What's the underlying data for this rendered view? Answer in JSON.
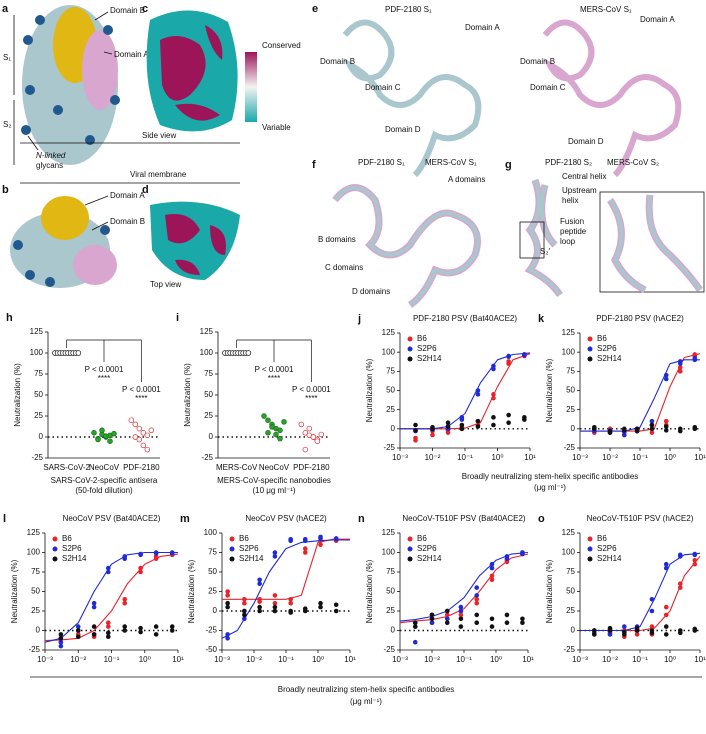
{
  "panels": [
    {
      "label": "a",
      "texts": [
        "S₁",
        "S₂",
        "Domain B",
        "Domain A",
        "N-linked",
        "glycans"
      ]
    },
    {
      "label": "c",
      "texts": [
        "Conserved",
        "Variable",
        "Side view",
        "Viral membrane"
      ]
    },
    {
      "label": "b",
      "texts": [
        "Domain A",
        "Domain B",
        "Top view"
      ]
    },
    {
      "label": "d"
    },
    {
      "label": "e",
      "texts": [
        "PDF-2180 S₁",
        "Domain A",
        "Domain B",
        "Domain C",
        "Domain D",
        "MERS-CoV S₁",
        "Domain A",
        "Domain B",
        "Domain C",
        "Domain D"
      ]
    },
    {
      "label": "f",
      "texts": [
        "PDF-2180 S₁",
        "MERS-CoV S₁",
        "A domains",
        "B domains",
        "C domains",
        "D domains"
      ]
    },
    {
      "label": "g",
      "texts": [
        "PDF-2180 S₂",
        "MERS-CoV S₂",
        "Central helix",
        "Upstream",
        "helix",
        "Fusion",
        "peptide",
        "loop",
        "S₂′"
      ]
    }
  ],
  "shared_x_labels": [
    [
      "Broadly neutralizing stem-helix specific antibodies",
      "(μg ml⁻¹)"
    ],
    [
      "Broadly neutralizing stem-helix specific antibodies",
      "(μg ml⁻¹)"
    ]
  ],
  "chart_data": [
    {
      "type": "strip",
      "panel": "h",
      "y_label": "Neutralization (%)",
      "x_label": [
        "SARS-CoV-2-specific antisera",
        "(50-fold dilution)"
      ],
      "categories": [
        "SARS-CoV-2",
        "NeoCoV",
        "PDF-2180"
      ],
      "colors": [
        "#111111",
        "#2ca02c",
        "#e0262b"
      ],
      "markers": [
        "open",
        "filled",
        "open"
      ],
      "values": [
        [
          100,
          100,
          100,
          100,
          100,
          100,
          100,
          100,
          100,
          100
        ],
        [
          5,
          -2,
          3,
          0,
          2,
          -3,
          8,
          1,
          -5,
          4
        ],
        [
          20,
          15,
          10,
          5,
          2,
          0,
          -3,
          -10,
          -15,
          8
        ]
      ],
      "annotations": [
        "P < 0.0001",
        "****",
        "P < 0.0001",
        "****"
      ],
      "ylim": [
        -25,
        125
      ],
      "yticks": [
        -25,
        0,
        25,
        50,
        75,
        100,
        125
      ]
    },
    {
      "type": "strip",
      "panel": "i",
      "y_label": "Neutralization (%)",
      "x_label": [
        "MERS-CoV-specific nanobodies",
        "(10 μg ml⁻¹)"
      ],
      "categories": [
        "MERS-CoV",
        "NeoCoV",
        "PDF-2180"
      ],
      "colors": [
        "#111111",
        "#2ca02c",
        "#e0262b"
      ],
      "markers": [
        "open",
        "filled",
        "open"
      ],
      "values": [
        [
          100,
          100,
          100,
          100,
          100,
          100,
          100,
          100,
          100,
          100
        ],
        [
          25,
          20,
          15,
          10,
          8,
          5,
          12,
          3,
          -2,
          18
        ],
        [
          15,
          5,
          2,
          0,
          -3,
          -15,
          10,
          0,
          -5,
          3
        ]
      ],
      "annotations": [
        "P < 0.0001",
        "****",
        "P < 0.0001",
        "****"
      ],
      "ylim": [
        -25,
        125
      ],
      "yticks": [
        -25,
        0,
        25,
        50,
        75,
        100,
        125
      ]
    },
    {
      "type": "scatter",
      "panel": "j",
      "title": "PDF-2180 PSV (Bat40ACE2)",
      "y_label": "Neutralization (%)",
      "log_x": true,
      "x": [
        0.003,
        0.003,
        0.01,
        0.01,
        0.03,
        0.03,
        0.08,
        0.08,
        0.25,
        0.25,
        0.75,
        0.75,
        2.2,
        2.2,
        6.7,
        6.7
      ],
      "curve_x": [
        0.001,
        0.003,
        0.01,
        0.03,
        0.1,
        0.3,
        1,
        3,
        10
      ],
      "series": [
        {
          "name": "B6",
          "color": "#e8232a",
          "values": [
            -12,
            -15,
            -3,
            -8,
            -2,
            -5,
            0,
            2,
            10,
            5,
            40,
            45,
            85,
            88,
            95,
            97
          ],
          "curve": [
            0,
            0,
            0,
            0,
            1,
            8,
            55,
            90,
            98
          ]
        },
        {
          "name": "S2P6",
          "color": "#1f2bd6",
          "values": [
            -3,
            -2,
            0,
            -1,
            2,
            0,
            15,
            12,
            45,
            50,
            78,
            82,
            95,
            94,
            97,
            96
          ],
          "curve": [
            0,
            0,
            0,
            3,
            20,
            60,
            90,
            97,
            99
          ]
        },
        {
          "name": "S2H14",
          "color": "#111111",
          "values": [
            5,
            -2,
            2,
            0,
            3,
            8,
            0,
            5,
            10,
            3,
            15,
            5,
            18,
            8,
            15,
            12
          ]
        }
      ],
      "xlim": [
        0.001,
        10
      ],
      "xticks": [
        {
          "value": 0.001,
          "label": "10⁻³"
        },
        {
          "value": 0.01,
          "label": "10⁻²"
        },
        {
          "value": 0.1,
          "label": "10⁻¹"
        },
        {
          "value": 1,
          "label": "10⁰"
        },
        {
          "value": 10,
          "label": "10¹"
        }
      ],
      "ylim": [
        -25,
        125
      ],
      "yticks": [
        -25,
        0,
        25,
        50,
        75,
        100,
        125
      ]
    },
    {
      "type": "scatter",
      "panel": "k",
      "title": "PDF-2180 PSV (hACE2)",
      "y_label": "Neutralization (%)",
      "log_x": true,
      "x": [
        0.003,
        0.003,
        0.01,
        0.01,
        0.03,
        0.03,
        0.08,
        0.08,
        0.25,
        0.25,
        0.75,
        0.75,
        2.2,
        2.2,
        6.7,
        6.7
      ],
      "curve_x": [
        0.001,
        0.003,
        0.01,
        0.03,
        0.1,
        0.3,
        1,
        3,
        10
      ],
      "series": [
        {
          "name": "B6",
          "color": "#e8232a",
          "values": [
            -2,
            -5,
            0,
            -3,
            -5,
            -8,
            -2,
            0,
            -5,
            0,
            10,
            5,
            75,
            80,
            95,
            97
          ],
          "curve": [
            -3,
            -3,
            -3,
            -3,
            -3,
            0,
            55,
            93,
            98
          ]
        },
        {
          "name": "S2P6",
          "color": "#1f2bd6",
          "values": [
            -3,
            0,
            -5,
            -2,
            -3,
            -8,
            0,
            -3,
            10,
            5,
            70,
            65,
            88,
            85,
            90,
            92
          ],
          "curve": [
            -3,
            -3,
            -3,
            -3,
            2,
            40,
            85,
            90,
            90
          ]
        },
        {
          "name": "S2H14",
          "color": "#111111",
          "values": [
            0,
            2,
            -3,
            -5,
            0,
            -2,
            -3,
            0,
            0,
            5,
            -2,
            3,
            0,
            -3,
            2,
            0
          ]
        }
      ],
      "xlim": [
        0.001,
        10
      ],
      "xticks": [
        {
          "value": 0.001,
          "label": "10⁻³"
        },
        {
          "value": 0.01,
          "label": "10⁻²"
        },
        {
          "value": 0.1,
          "label": "10⁻¹"
        },
        {
          "value": 1,
          "label": "10⁰"
        },
        {
          "value": 10,
          "label": "10¹"
        }
      ],
      "ylim": [
        -25,
        125
      ],
      "yticks": [
        -25,
        0,
        25,
        50,
        75,
        100,
        125
      ]
    },
    {
      "type": "scatter",
      "panel": "l",
      "title": "NeoCoV PSV (Bat40ACE2)",
      "y_label": "Neutralization (%)",
      "log_x": true,
      "x": [
        0.003,
        0.003,
        0.01,
        0.01,
        0.03,
        0.03,
        0.08,
        0.08,
        0.25,
        0.25,
        0.75,
        0.75,
        2.2,
        2.2,
        6.7,
        6.7
      ],
      "curve_x": [
        0.001,
        0.003,
        0.01,
        0.03,
        0.1,
        0.3,
        1,
        3,
        10
      ],
      "series": [
        {
          "name": "B6",
          "color": "#e8232a",
          "values": [
            -10,
            -15,
            -5,
            -8,
            -8,
            -5,
            10,
            5,
            40,
            35,
            80,
            75,
            95,
            92,
            98,
            97
          ],
          "curve": [
            -13,
            -12,
            -10,
            0,
            25,
            60,
            85,
            95,
            98
          ]
        },
        {
          "name": "S2P6",
          "color": "#1f2bd6",
          "values": [
            -15,
            -20,
            5,
            0,
            35,
            30,
            75,
            80,
            95,
            92,
            98,
            97,
            100,
            99,
            100,
            99
          ],
          "curve": [
            -15,
            -10,
            10,
            50,
            85,
            97,
            100,
            100,
            100
          ]
        },
        {
          "name": "S2H14",
          "color": "#111111",
          "values": [
            -5,
            -10,
            0,
            -8,
            -5,
            5,
            -3,
            -8,
            0,
            5,
            -2,
            3,
            5,
            -5,
            0,
            5
          ]
        }
      ],
      "xlim": [
        0.001,
        10
      ],
      "xticks": [
        {
          "value": 0.001,
          "label": "10⁻³"
        },
        {
          "value": 0.01,
          "label": "10⁻²"
        },
        {
          "value": 0.1,
          "label": "10⁻¹"
        },
        {
          "value": 1,
          "label": "10⁰"
        },
        {
          "value": 10,
          "label": "10¹"
        }
      ],
      "ylim": [
        -25,
        125
      ],
      "yticks": [
        -25,
        0,
        25,
        50,
        75,
        100,
        125
      ]
    },
    {
      "type": "scatter",
      "panel": "m",
      "title": "NeoCoV PSV (hACE2)",
      "y_label": "Neutralization (%)",
      "log_x": true,
      "x": [
        0.0015,
        0.0015,
        0.005,
        0.005,
        0.015,
        0.015,
        0.045,
        0.045,
        0.14,
        0.14,
        0.4,
        0.4,
        1.2,
        1.2,
        3.7,
        3.7
      ],
      "curve_x": [
        0.001,
        0.003,
        0.01,
        0.03,
        0.1,
        0.3,
        1,
        3,
        10
      ],
      "series": [
        {
          "name": "B6",
          "color": "#e8232a",
          "values": [
            25,
            20,
            15,
            10,
            15,
            12,
            10,
            20,
            15,
            10,
            80,
            75,
            90,
            85,
            90,
            92
          ],
          "curve": [
            15,
            15,
            15,
            15,
            15,
            20,
            88,
            92,
            92
          ]
        },
        {
          "name": "S2P6",
          "color": "#1f2bd6",
          "values": [
            -35,
            -30,
            0,
            -10,
            40,
            35,
            75,
            70,
            90,
            92,
            92,
            90,
            93,
            95,
            93,
            92
          ],
          "curve": [
            -35,
            -25,
            10,
            50,
            80,
            88,
            90,
            91,
            91
          ]
        },
        {
          "name": "S2H14",
          "color": "#111111",
          "values": [
            10,
            5,
            0,
            -5,
            0,
            5,
            5,
            0,
            0,
            -2,
            3,
            0,
            5,
            10,
            0,
            8
          ]
        }
      ],
      "xlim": [
        0.001,
        10
      ],
      "xticks": [
        {
          "value": 0.001,
          "label": "10⁻³"
        },
        {
          "value": 0.01,
          "label": "10⁻²"
        },
        {
          "value": 0.1,
          "label": "10⁻¹"
        },
        {
          "value": 1,
          "label": "10⁰"
        },
        {
          "value": 10,
          "label": "10¹"
        }
      ],
      "ylim": [
        -50,
        100
      ],
      "yticks": [
        -50,
        -25,
        0,
        25,
        50,
        75,
        100
      ]
    },
    {
      "type": "scatter",
      "panel": "n",
      "title": "NeoCoV-T510F PSV (Bat40ACE2)",
      "y_label": "Neutralization (%)",
      "log_x": true,
      "x": [
        0.003,
        0.003,
        0.01,
        0.01,
        0.03,
        0.03,
        0.08,
        0.08,
        0.25,
        0.25,
        0.75,
        0.75,
        2.2,
        2.2,
        6.7,
        6.7
      ],
      "curve_x": [
        0.001,
        0.003,
        0.01,
        0.03,
        0.1,
        0.3,
        1,
        3,
        10
      ],
      "series": [
        {
          "name": "B6",
          "color": "#e8232a",
          "values": [
            5,
            10,
            15,
            10,
            15,
            20,
            20,
            25,
            40,
            35,
            70,
            65,
            90,
            88,
            100,
            98
          ],
          "curve": [
            10,
            12,
            14,
            18,
            28,
            50,
            78,
            93,
            98
          ]
        },
        {
          "name": "S2P6",
          "color": "#1f2bd6",
          "values": [
            10,
            -15,
            20,
            10,
            15,
            25,
            30,
            25,
            55,
            45,
            85,
            80,
            95,
            92,
            100,
            98
          ],
          "curve": [
            12,
            14,
            18,
            25,
            42,
            70,
            90,
            98,
            100
          ]
        },
        {
          "name": "S2H14",
          "color": "#111111",
          "values": [
            10,
            5,
            15,
            20,
            25,
            10,
            15,
            5,
            10,
            20,
            15,
            5,
            20,
            10,
            15,
            10
          ]
        }
      ],
      "xlim": [
        0.001,
        10
      ],
      "xticks": [
        {
          "value": 0.001,
          "label": "10⁻³"
        },
        {
          "value": 0.01,
          "label": "10⁻²"
        },
        {
          "value": 0.1,
          "label": "10⁻¹"
        },
        {
          "value": 1,
          "label": "10⁰"
        },
        {
          "value": 10,
          "label": "10¹"
        }
      ],
      "ylim": [
        -25,
        125
      ],
      "yticks": [
        -25,
        0,
        25,
        50,
        75,
        100,
        125
      ]
    },
    {
      "type": "scatter",
      "panel": "o",
      "title": "NeoCoV-T510F PSV (hACE2)",
      "y_label": "Neutralization (%)",
      "log_x": true,
      "x": [
        0.003,
        0.003,
        0.01,
        0.01,
        0.03,
        0.03,
        0.08,
        0.08,
        0.25,
        0.25,
        0.75,
        0.75,
        2.2,
        2.2,
        6.7,
        6.7
      ],
      "curve_x": [
        0.001,
        0.003,
        0.01,
        0.03,
        0.1,
        0.3,
        1,
        3,
        10
      ],
      "series": [
        {
          "name": "B6",
          "color": "#e8232a",
          "values": [
            -5,
            0,
            -3,
            -5,
            0,
            -8,
            -5,
            0,
            -5,
            5,
            30,
            20,
            60,
            55,
            85,
            90
          ],
          "curve": [
            0,
            0,
            0,
            0,
            0,
            3,
            25,
            70,
            95
          ]
        },
        {
          "name": "S2P6",
          "color": "#1f2bd6",
          "values": [
            0,
            -3,
            -5,
            0,
            5,
            -2,
            0,
            5,
            25,
            40,
            85,
            80,
            95,
            97,
            98,
            97
          ],
          "curve": [
            0,
            0,
            0,
            0,
            5,
            40,
            85,
            97,
            99
          ]
        },
        {
          "name": "S2H14",
          "color": "#111111",
          "values": [
            0,
            -5,
            3,
            0,
            -2,
            -5,
            0,
            3,
            -3,
            0,
            5,
            -5,
            0,
            -3,
            2,
            0
          ]
        }
      ],
      "xlim": [
        0.001,
        10
      ],
      "xticks": [
        {
          "value": 0.001,
          "label": "10⁻³"
        },
        {
          "value": 0.01,
          "label": "10⁻²"
        },
        {
          "value": 0.1,
          "label": "10⁻¹"
        },
        {
          "value": 1,
          "label": "10⁰"
        },
        {
          "value": 10,
          "label": "10¹"
        }
      ],
      "ylim": [
        -25,
        125
      ],
      "yticks": [
        -25,
        0,
        25,
        50,
        75,
        100,
        125
      ]
    }
  ]
}
